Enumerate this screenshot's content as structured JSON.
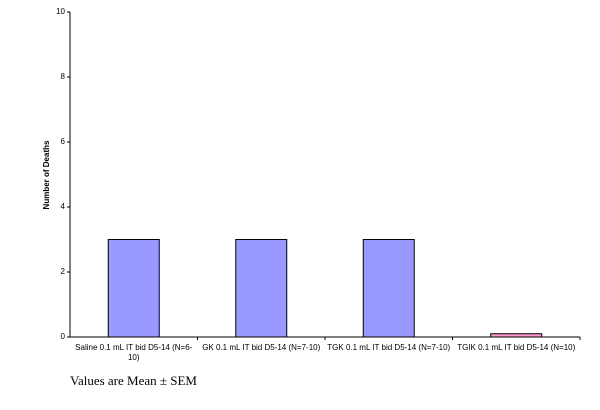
{
  "chart_data": {
    "type": "bar",
    "ylabel": "Number of Deaths",
    "categories": [
      "Saline 0.1 mL IT bid D5-14 (N=6-10)",
      "GK 0.1 mL IT bid D5-14 (N=7-10)",
      "TGK 0.1 mL IT bid D5-14 (N=7-10)",
      "TGIK 0.1 mL IT bid D5-14 (N=10)"
    ],
    "values": [
      3,
      3,
      3,
      0.1
    ],
    "colors": [
      "#9999ff",
      "#9999ff",
      "#9999ff",
      "#ff99cc"
    ],
    "ylim": [
      0,
      10
    ],
    "yticks": [
      0,
      2,
      4,
      6,
      8,
      10
    ],
    "grid": false,
    "note": "Values are Mean ± SEM"
  }
}
